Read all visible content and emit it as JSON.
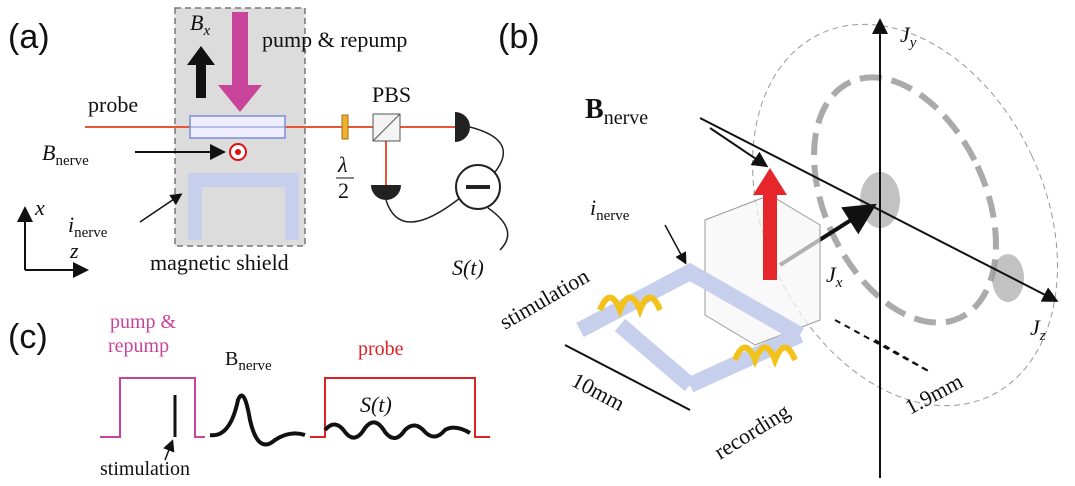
{
  "panel_a": {
    "label": "(a)",
    "bx": {
      "base": "B",
      "sub": "x"
    },
    "pump": "pump & repump",
    "probe": "probe",
    "pbs": "PBS",
    "bnerve": {
      "base": "B",
      "sub": "nerve"
    },
    "waveplate": {
      "num": "λ",
      "den": "2"
    },
    "axis_x": "x",
    "axis_z": "z",
    "inerve": {
      "base": "i",
      "sub": "nerve"
    },
    "shield": "magnetic shield",
    "signal": "S(t)"
  },
  "panel_b": {
    "label": "(b)",
    "jy": {
      "base": "J",
      "sub": "y"
    },
    "bnerve": {
      "base": "B",
      "sub": "nerve"
    },
    "inerve": {
      "base": "i",
      "sub": "nerve"
    },
    "stimulation": "stimulation",
    "jx": {
      "base": "J",
      "sub": "x"
    },
    "jz": {
      "base": "J",
      "sub": "z"
    },
    "length": "10mm",
    "recording": "recording",
    "distance": "1.9mm"
  },
  "panel_c": {
    "label": "(c)",
    "pump_lines": [
      "pump &",
      "repump"
    ],
    "bnerve": {
      "base": "B",
      "sub": "nerve"
    },
    "probe": "probe",
    "signal": "S(t)",
    "stimulation": "stimulation"
  }
}
